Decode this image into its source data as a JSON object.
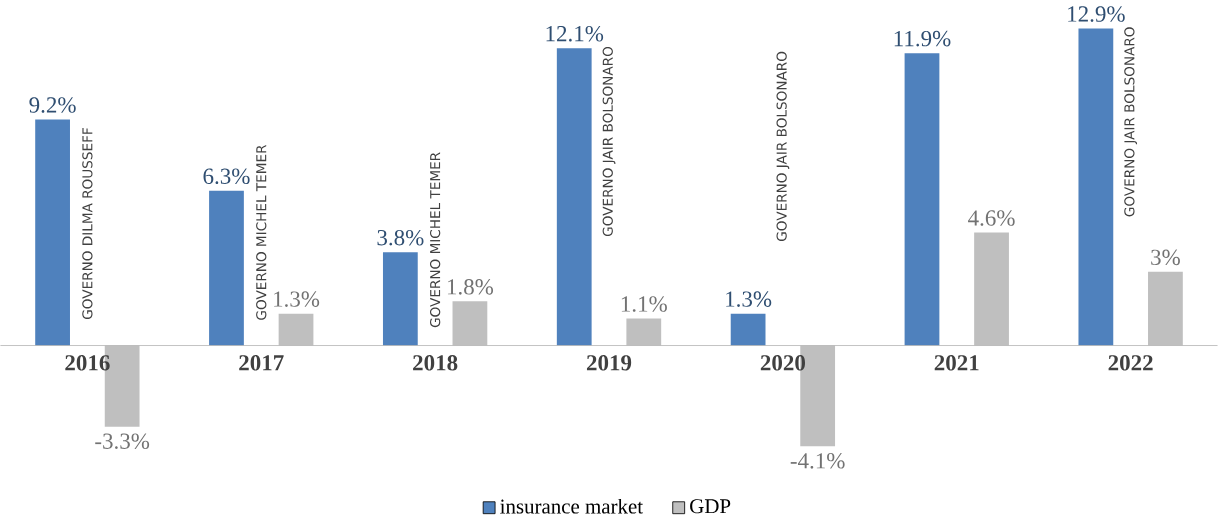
{
  "chart_data": {
    "type": "bar",
    "categories": [
      "2016",
      "2017",
      "2018",
      "2019",
      "2020",
      "2021",
      "2022"
    ],
    "series": [
      {
        "name": "insurance market",
        "color": "#4f81bd",
        "values": [
          9.2,
          6.3,
          3.8,
          12.1,
          1.3,
          11.9,
          12.9
        ],
        "value_labels": [
          "9.2%",
          "6.3%",
          "3.8%",
          "12.1%",
          "1.3%",
          "11.9%",
          "12.9%"
        ]
      },
      {
        "name": "GDP",
        "color": "#bfbfbf",
        "values": [
          -3.3,
          1.3,
          1.8,
          1.1,
          -4.1,
          4.6,
          3
        ],
        "value_labels": [
          "-3.3%",
          "1.3%",
          "1.8%",
          "1.1%",
          "-4.1%",
          "4.6%",
          "3%"
        ]
      }
    ],
    "annotations": [
      "GOVERNO DILMA ROUSSEFF",
      "GOVERNO MICHEL TEMER",
      "GOVERNO MICHEL TEMER",
      "GOVERNO JAIR BOLSONARO",
      "GOVERNO JAIR BOLSONARO",
      "GOVERNO JAIR BOLSONARO"
    ],
    "tick_labels": "x",
    "legend": "bottom"
  }
}
